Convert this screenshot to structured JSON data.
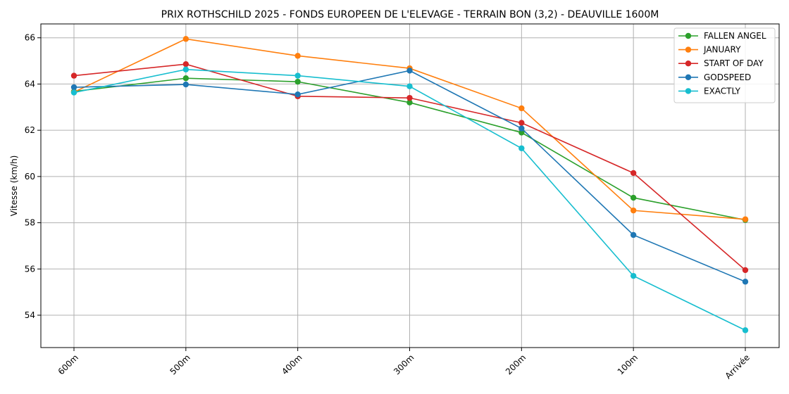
{
  "chart_data": {
    "type": "line",
    "title": "PRIX ROTHSCHILD 2025 - FONDS EUROPEEN DE L'ELEVAGE - TERRAIN BON   (3,2) - DEAUVILLE 1600M",
    "xlabel": "",
    "ylabel": "Vitesse (km/h)",
    "categories": [
      "600m",
      "500m",
      "400m",
      "300m",
      "200m",
      "100m",
      "Arrivée"
    ],
    "ylim": [
      52.6,
      66.6
    ],
    "yticks": [
      54,
      56,
      58,
      60,
      62,
      64,
      66
    ],
    "grid": true,
    "legend": "top-right",
    "series": [
      {
        "name": "FALLEN ANGEL",
        "color": "#2ca02c",
        "values": [
          63.68,
          64.25,
          64.1,
          63.2,
          61.9,
          59.08,
          58.12
        ]
      },
      {
        "name": "JANUARY",
        "color": "#ff7f0e",
        "values": [
          63.65,
          65.95,
          65.22,
          64.68,
          62.95,
          58.53,
          58.15
        ]
      },
      {
        "name": "START OF DAY",
        "color": "#d62728",
        "values": [
          64.36,
          64.86,
          63.47,
          63.4,
          62.32,
          60.15,
          55.95
        ]
      },
      {
        "name": "GODSPEED",
        "color": "#1f77b4",
        "values": [
          63.86,
          63.98,
          63.55,
          64.58,
          62.08,
          57.47,
          55.45
        ]
      },
      {
        "name": "EXACTLY",
        "color": "#17becf",
        "values": [
          63.63,
          64.63,
          64.36,
          63.9,
          61.22,
          55.7,
          53.35
        ]
      }
    ]
  }
}
